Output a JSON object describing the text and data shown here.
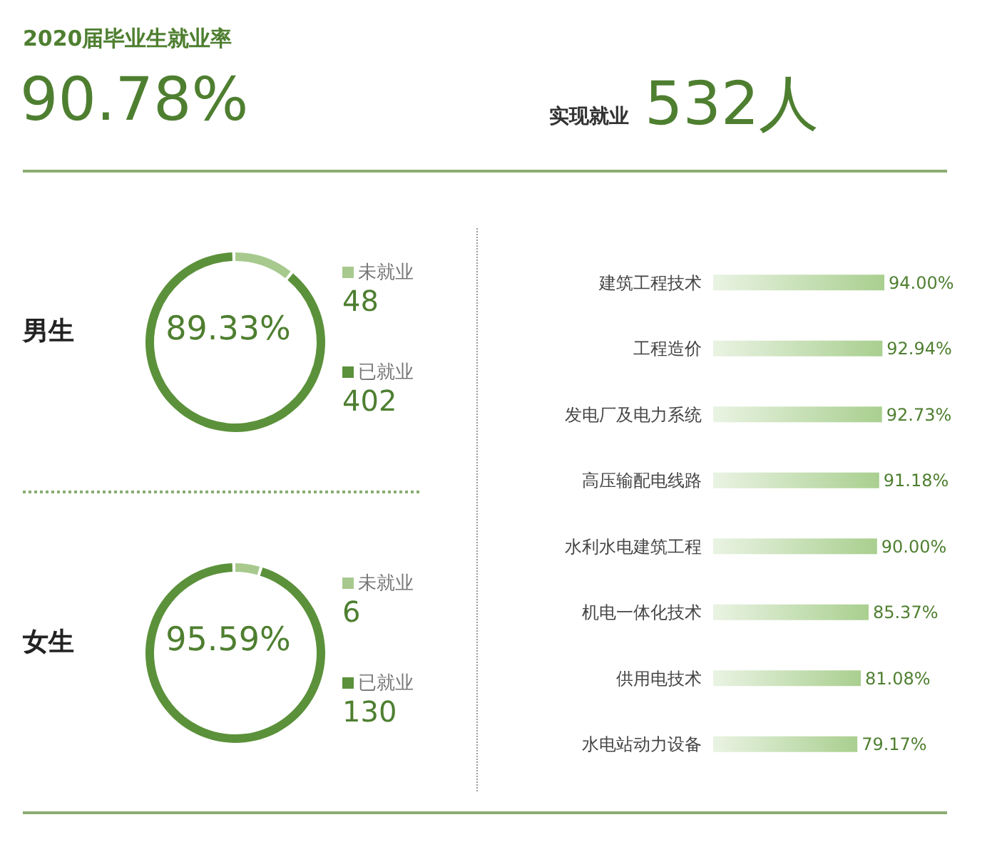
{
  "chart_data": [
    {
      "type": "other",
      "title": "2020届毕业生就业率",
      "annotations": [
        "90.78%",
        "实现就业",
        "532人"
      ]
    },
    {
      "type": "donut",
      "title": "男生",
      "categories": [
        "未就业",
        "已就业"
      ],
      "values": [
        48,
        402
      ],
      "colors": [
        "#a7c98e",
        "#5b913a"
      ],
      "data_labels": true,
      "legend": "right",
      "annotations": [
        "89.33%"
      ]
    },
    {
      "type": "donut",
      "title": "女生",
      "categories": [
        "未就业",
        "已就业"
      ],
      "values": [
        6,
        130
      ],
      "colors": [
        "#a7c98e",
        "#5b913a"
      ],
      "data_labels": true,
      "legend": "right",
      "annotations": [
        "95.59%"
      ]
    },
    {
      "type": "bar",
      "orientation": "horizontal",
      "categories": [
        "建筑工程技术",
        "工程造价",
        "发电厂及电力系统",
        "高压输配电线路",
        "水利水电建筑工程",
        "机电一体化技术",
        "供用电技术",
        "水电站动力设备"
      ],
      "values": [
        94.0,
        92.94,
        92.73,
        91.18,
        90.0,
        85.37,
        81.08,
        79.17
      ],
      "value_labels": [
        "94.00%",
        "92.94%",
        "92.73%",
        "91.18%",
        "90.00%",
        "85.37%",
        "81.08%",
        "79.17%"
      ],
      "color": "#a9cf8f"
    }
  ]
}
